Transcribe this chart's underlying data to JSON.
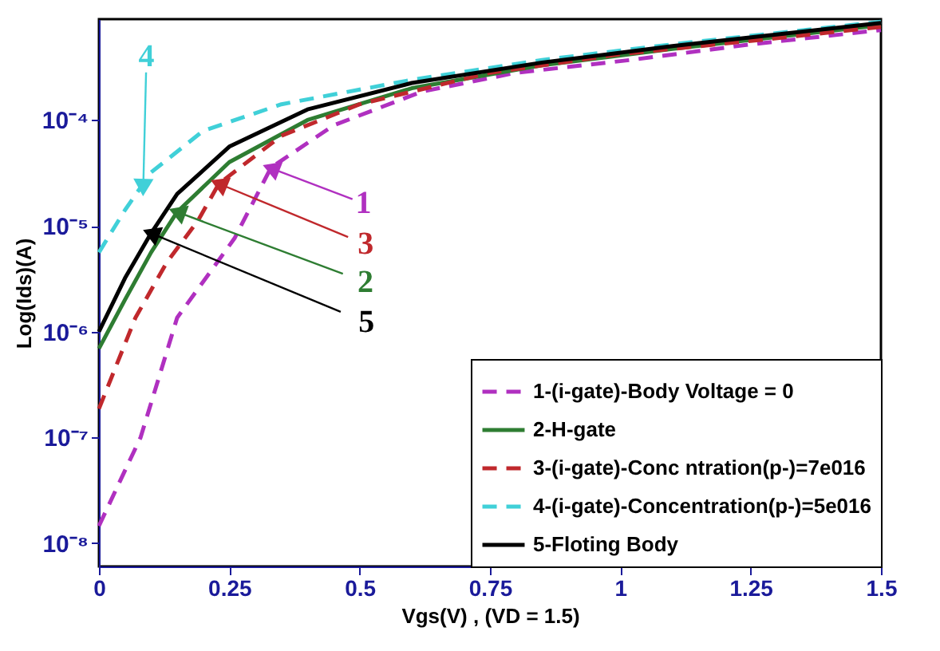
{
  "chart_data": {
    "type": "line",
    "xlabel": "Vgs(V) ,  (VD = 1.5)",
    "ylabel": "Log(Ids)(A)",
    "log": true,
    "grid": false,
    "legend": "bottom right",
    "marker": "none",
    "xlim": [
      0,
      1.5
    ],
    "xticks": [
      0,
      0.25,
      0.5,
      0.75,
      1,
      1.25,
      1.5
    ],
    "ylim": [
      6e-09,
      0.0009
    ],
    "yticks": [
      {
        "value": 1e-08,
        "label": "10⁻⁸"
      },
      {
        "value": 1e-07,
        "label": "10⁻⁷"
      },
      {
        "value": 1e-06,
        "label": "10⁻⁶"
      },
      {
        "value": 1e-05,
        "label": "10⁻⁵"
      },
      {
        "value": 0.0001,
        "label": "10⁻⁴"
      }
    ],
    "series": [
      {
        "name": "1-(i-gate)-Body Voltage = 0",
        "color": "#b030c0",
        "line_style": "dashed",
        "x": [
          0,
          0.08,
          0.15,
          0.26,
          0.33,
          0.45,
          0.62,
          0.8,
          1.02,
          1.25,
          1.5
        ],
        "values": [
          1.45e-08,
          1e-07,
          1.35e-06,
          7.6e-06,
          3.55e-05,
          8.9e-05,
          0.000186,
          0.00028,
          0.00037,
          0.00052,
          0.00071
        ]
      },
      {
        "name": "2-H-gate",
        "color": "#2e7d32",
        "line_style": "solid",
        "x": [
          0,
          0.05,
          0.1,
          0.15,
          0.25,
          0.4,
          0.6,
          0.85,
          1.1,
          1.5
        ],
        "values": [
          6.9e-07,
          2e-06,
          5.6e-06,
          1.35e-05,
          4e-05,
          0.0001,
          0.0002,
          0.00033,
          0.00047,
          0.00079
        ]
      },
      {
        "name": "3-(i-gate)-Conc  ntration(p-)=7e016",
        "color": "#c0282c",
        "line_style": "dashed",
        "x": [
          0,
          0.07,
          0.13,
          0.19,
          0.23,
          0.35,
          0.5,
          0.75,
          1.0,
          1.25,
          1.5
        ],
        "values": [
          1.86e-07,
          1.35e-06,
          4.5e-06,
          1.12e-05,
          2.5e-05,
          7.1e-05,
          0.000141,
          0.00028,
          0.00042,
          0.00056,
          0.00076
        ]
      },
      {
        "name": "4-(i-gate)-Concentration(p-)=5e016",
        "color": "#40d0d8",
        "line_style": "dashed",
        "x": [
          0,
          0.05,
          0.1,
          0.2,
          0.35,
          0.6,
          0.85,
          1.1,
          1.5
        ],
        "values": [
          5.6e-06,
          1.41e-05,
          3.2e-05,
          7.9e-05,
          0.000141,
          0.00024,
          0.00037,
          0.00052,
          0.00085
        ]
      },
      {
        "name": "5-Floting Body",
        "color": "#000000",
        "line_style": "solid",
        "x": [
          0,
          0.05,
          0.1,
          0.15,
          0.25,
          0.4,
          0.6,
          0.85,
          1.1,
          1.5
        ],
        "values": [
          1e-06,
          3.2e-06,
          8.5e-06,
          2e-05,
          5.6e-05,
          0.000126,
          0.000224,
          0.00035,
          0.0005,
          0.00083
        ]
      }
    ],
    "annotations": [
      {
        "text": "1",
        "x": 0.33,
        "y": 3.5e-05
      },
      {
        "text": "2",
        "x": 0.15,
        "y": 1.35e-05
      },
      {
        "text": "3",
        "x": 0.23,
        "y": 2.5e-05
      },
      {
        "text": "4",
        "x": 0.085,
        "y": 2.3e-05
      },
      {
        "text": "5",
        "x": 0.1,
        "y": 8.5e-06
      }
    ]
  }
}
